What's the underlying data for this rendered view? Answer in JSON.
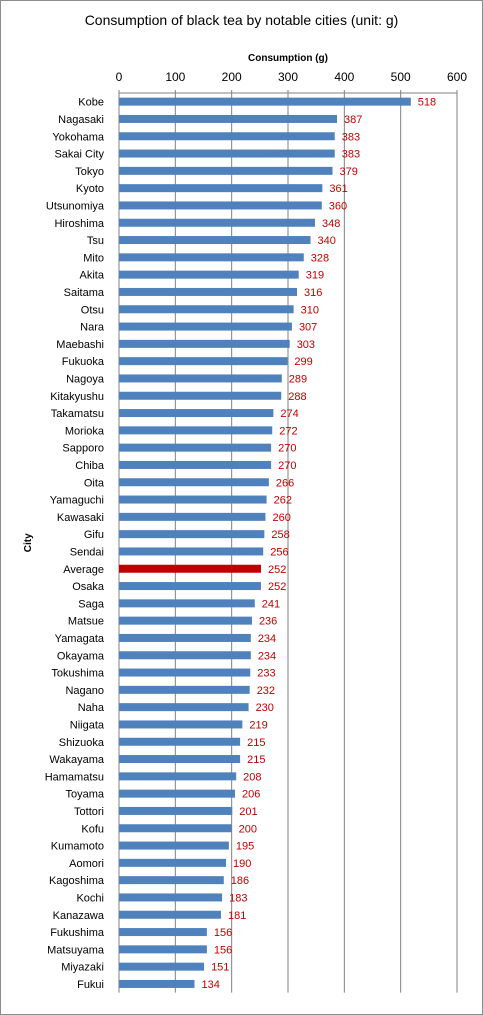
{
  "chart_data": {
    "type": "bar",
    "orientation": "horizontal",
    "title": "Consumption of black tea by notable cities (unit: g)",
    "xlabel": "Consumption (g)",
    "ylabel": "City",
    "xlim": [
      0,
      600
    ],
    "xticks": [
      0,
      100,
      200,
      300,
      400,
      500,
      600
    ],
    "x_axis_position": "top",
    "grid": "vertical",
    "colors": {
      "bar": "#4f81bd",
      "highlight": "#c00000",
      "label": "#c00000",
      "grid": "#808080"
    },
    "highlight_category": "Average",
    "categories": [
      "Kobe",
      "Nagasaki",
      "Yokohama",
      "Sakai City",
      "Tokyo",
      "Kyoto",
      "Utsunomiya",
      "Hiroshima",
      "Tsu",
      "Mito",
      "Akita",
      "Saitama",
      "Otsu",
      "Nara",
      "Maebashi",
      "Fukuoka",
      "Nagoya",
      "Kitakyushu",
      "Takamatsu",
      "Morioka",
      "Sapporo",
      "Chiba",
      "Oita",
      "Yamaguchi",
      "Kawasaki",
      "Gifu",
      "Sendai",
      "Average",
      "Osaka",
      "Saga",
      "Matsue",
      "Yamagata",
      "Okayama",
      "Tokushima",
      "Nagano",
      "Naha",
      "Niigata",
      "Shizuoka",
      "Wakayama",
      "Hamamatsu",
      "Toyama",
      "Tottori",
      "Kofu",
      "Kumamoto",
      "Aomori",
      "Kagoshima",
      "Kochi",
      "Kanazawa",
      "Fukushima",
      "Matsuyama",
      "Miyazaki",
      "Fukui"
    ],
    "values": [
      518,
      387,
      383,
      383,
      379,
      361,
      360,
      348,
      340,
      328,
      319,
      316,
      310,
      307,
      303,
      299,
      289,
      288,
      274,
      272,
      270,
      270,
      266,
      262,
      260,
      258,
      256,
      252,
      252,
      241,
      236,
      234,
      234,
      233,
      232,
      230,
      219,
      215,
      215,
      208,
      206,
      201,
      200,
      195,
      190,
      186,
      183,
      181,
      156,
      156,
      151,
      134
    ]
  }
}
